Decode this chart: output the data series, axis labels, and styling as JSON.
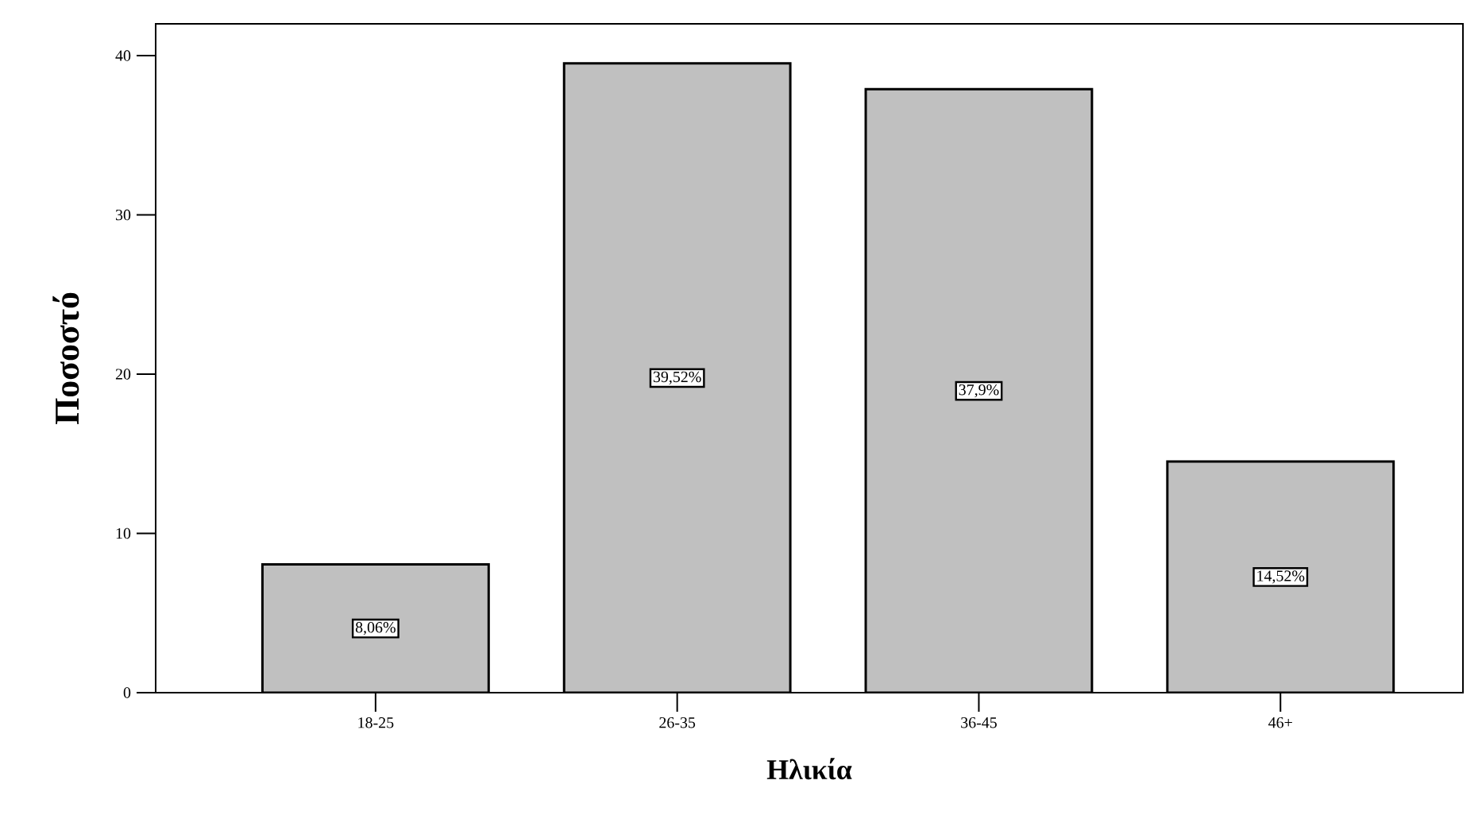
{
  "chart_data": {
    "type": "bar",
    "xlabel": "Ηλικία",
    "ylabel": "Ποσοστό",
    "categories": [
      "18-25",
      "26-35",
      "36-45",
      "46+"
    ],
    "values": [
      8.06,
      39.52,
      37.9,
      14.52
    ],
    "value_labels": [
      "8,06%",
      "39,52%",
      "37,9%",
      "14,52%"
    ],
    "color": "#c0c0c0",
    "ylim": [
      0,
      42
    ],
    "yticks": [
      0,
      10,
      20,
      30,
      40
    ],
    "grid": false
  }
}
